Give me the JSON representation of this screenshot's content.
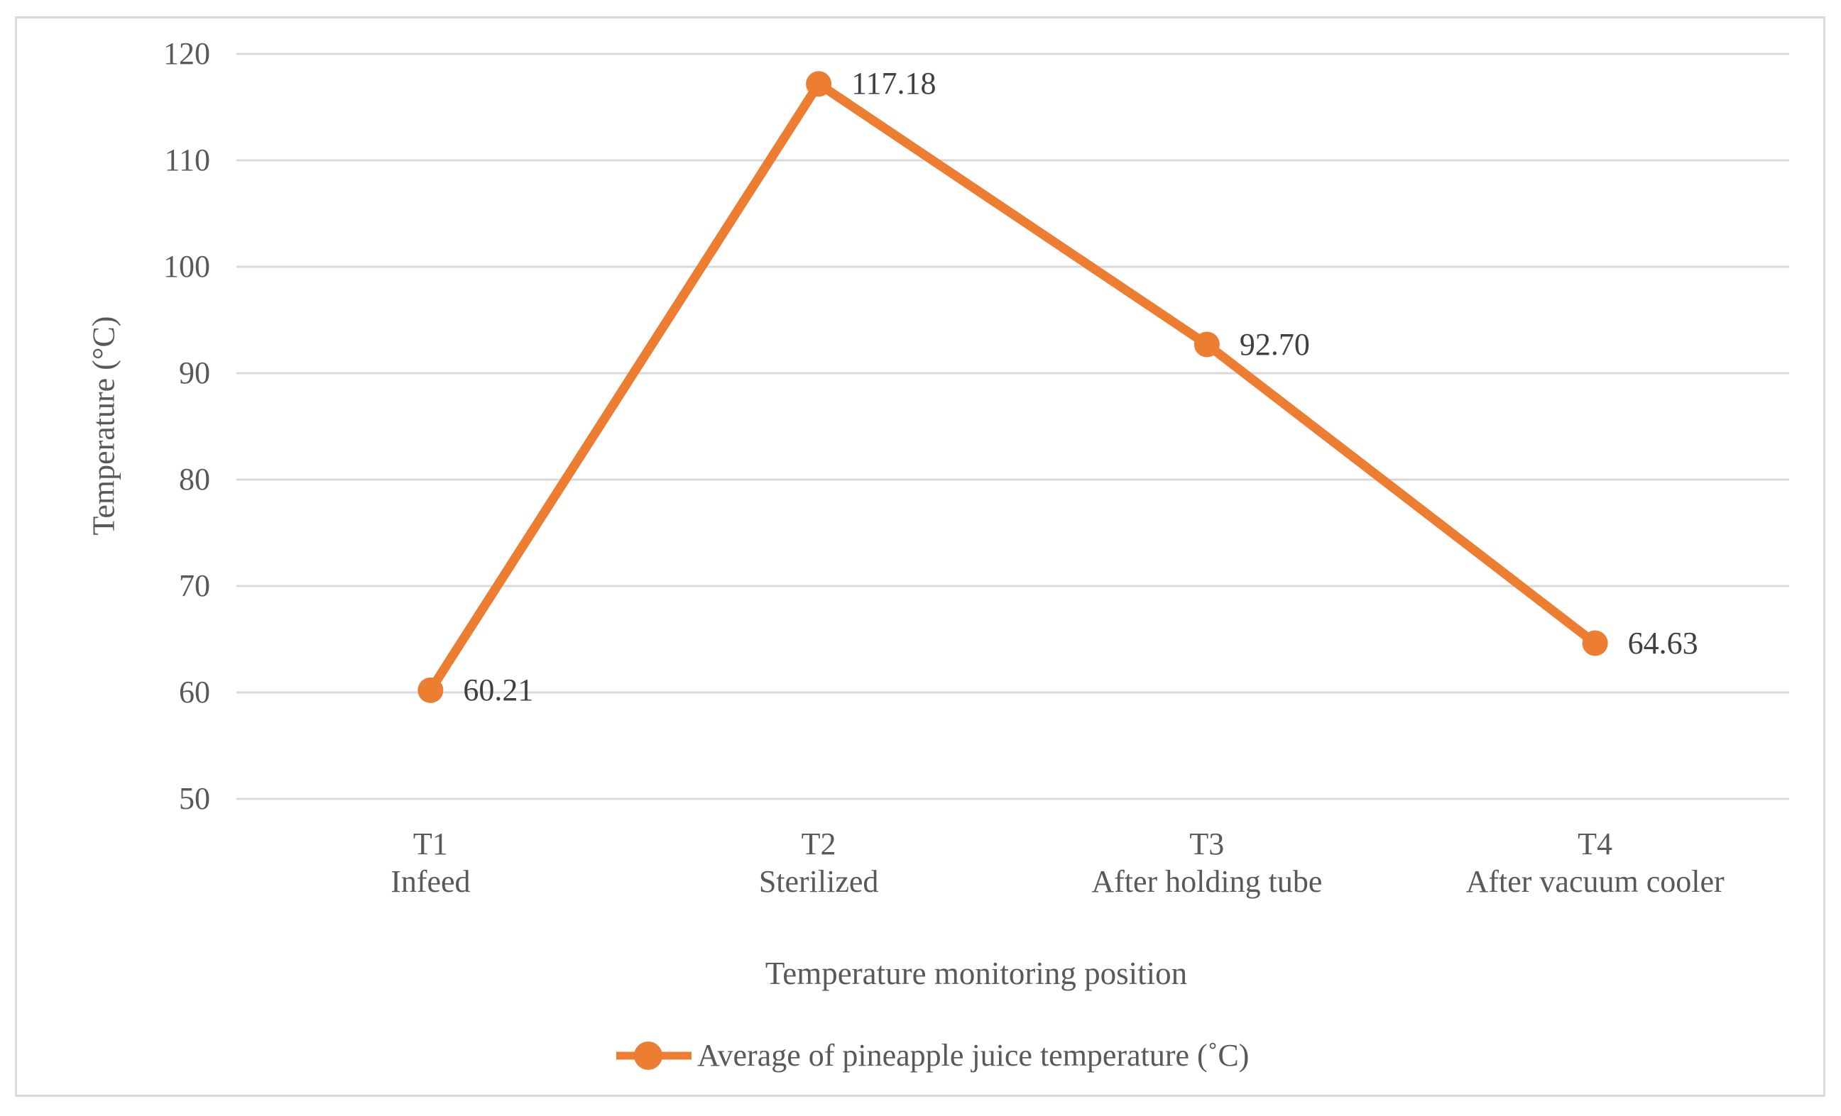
{
  "colors": {
    "accent_orange": "#ED7D31",
    "gridline": "#D9D9D9",
    "figure_border": "#D9D9D9",
    "axis_text": "#595959",
    "data_label_text": "#404040"
  },
  "chart_data": {
    "type": "line",
    "title": "",
    "xlabel": "Temperature monitoring position",
    "ylabel": "Temperature (°C)",
    "ylim": [
      50,
      120
    ],
    "ytick_step": 10,
    "yticks": [
      "50",
      "60",
      "70",
      "80",
      "90",
      "100",
      "110",
      "120"
    ],
    "grid": true,
    "legend_position": "bottom",
    "categories": [
      {
        "line1": "T1",
        "line2": "Infeed"
      },
      {
        "line1": "T2",
        "line2": "Sterilized"
      },
      {
        "line1": "T3",
        "line2": "After holding tube"
      },
      {
        "line1": "T4",
        "line2": "After vacuum cooler"
      }
    ],
    "series": [
      {
        "name": "Average of pineapple juice temperature (˚C)",
        "values": [
          60.21,
          117.18,
          92.7,
          64.63
        ],
        "labels": [
          "60.21",
          "117.18",
          "92.70",
          "64.63"
        ],
        "color": "#ED7D31",
        "marker": "circle"
      }
    ]
  }
}
